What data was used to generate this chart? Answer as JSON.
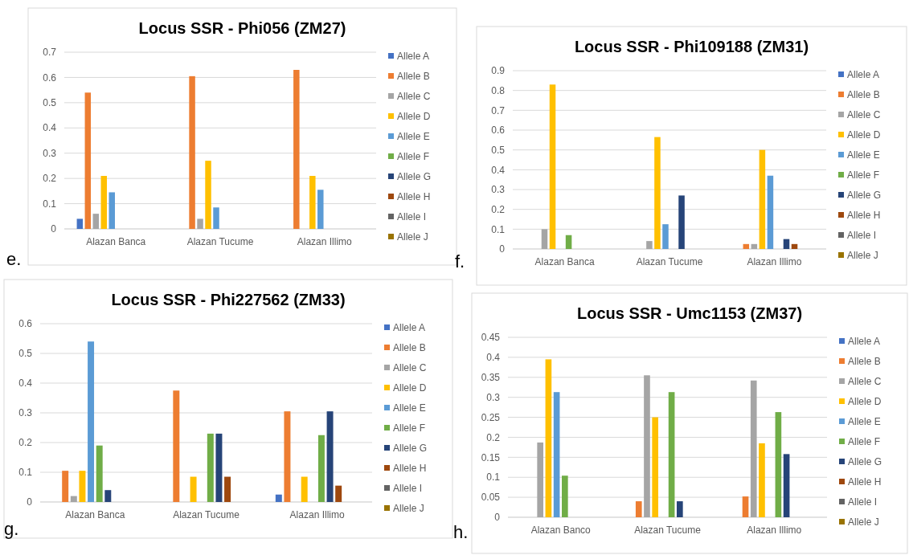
{
  "chart_data": [
    {
      "type": "bar",
      "title": "Locus SSR -  Phi056 (ZM27)",
      "categories": [
        "Alazan Banca",
        "Alazan Tucume",
        "Alazan Illimo"
      ],
      "ylim": [
        0,
        0.7
      ],
      "yticks": [
        0,
        0.1,
        0.2,
        0.3,
        0.4,
        0.5,
        0.6,
        0.7
      ],
      "grid": "y",
      "legend": "right",
      "annotations": [
        "e."
      ],
      "series": [
        {
          "name": "Allele A",
          "color": "#4472c4",
          "values": [
            0.04,
            0,
            0
          ]
        },
        {
          "name": "Allele B",
          "color": "#ed7d31",
          "values": [
            0.54,
            0.605,
            0.63
          ]
        },
        {
          "name": "Allele C",
          "color": "#a5a5a5",
          "values": [
            0.06,
            0.04,
            0
          ]
        },
        {
          "name": "Allele D",
          "color": "#ffc000",
          "values": [
            0.21,
            0.27,
            0.21
          ]
        },
        {
          "name": "Allele E",
          "color": "#5b9bd5",
          "values": [
            0.145,
            0.085,
            0.155
          ]
        },
        {
          "name": "Allele F",
          "color": "#70ad47",
          "values": [
            0,
            0,
            0
          ]
        },
        {
          "name": "Allele G",
          "color": "#264478",
          "values": [
            0,
            0,
            0
          ]
        },
        {
          "name": "Allele H",
          "color": "#9e480e",
          "values": [
            0,
            0,
            0
          ]
        },
        {
          "name": "Allele I",
          "color": "#636363",
          "values": [
            0,
            0,
            0
          ]
        },
        {
          "name": "Allele J",
          "color": "#997300",
          "values": [
            0,
            0,
            0
          ]
        }
      ]
    },
    {
      "type": "bar",
      "title": "Locus SSR -  Phi109188 (ZM31)",
      "categories": [
        "Alazan Banca",
        "Alazan Tucume",
        "Alazan Illimo"
      ],
      "ylim": [
        0,
        0.9
      ],
      "yticks": [
        0,
        0.1,
        0.2,
        0.3,
        0.4,
        0.5,
        0.6,
        0.7,
        0.8,
        0.9
      ],
      "grid": "y",
      "legend": "right",
      "annotations": [
        "f."
      ],
      "series": [
        {
          "name": "Allele A",
          "color": "#4472c4",
          "values": [
            0,
            0,
            0
          ]
        },
        {
          "name": "Allele B",
          "color": "#ed7d31",
          "values": [
            0,
            0,
            0.025
          ]
        },
        {
          "name": "Allele C",
          "color": "#a5a5a5",
          "values": [
            0.1,
            0.04,
            0.025
          ]
        },
        {
          "name": "Allele D",
          "color": "#ffc000",
          "values": [
            0.83,
            0.565,
            0.5
          ]
        },
        {
          "name": "Allele E",
          "color": "#5b9bd5",
          "values": [
            0,
            0.125,
            0.37
          ]
        },
        {
          "name": "Allele F",
          "color": "#70ad47",
          "values": [
            0.07,
            0,
            0
          ]
        },
        {
          "name": "Allele G",
          "color": "#264478",
          "values": [
            0,
            0.27,
            0.05
          ]
        },
        {
          "name": "Allele H",
          "color": "#9e480e",
          "values": [
            0,
            0,
            0.025
          ]
        },
        {
          "name": "Allele I",
          "color": "#636363",
          "values": [
            0,
            0,
            0
          ]
        },
        {
          "name": "Allele J",
          "color": "#997300",
          "values": [
            0,
            0,
            0
          ]
        }
      ]
    },
    {
      "type": "bar",
      "title": "Locus SSR -  Phi227562 (ZM33)",
      "categories": [
        "Alazan Banca",
        "Alazan Tucume",
        "Alazan Illimo"
      ],
      "ylim": [
        0,
        0.6
      ],
      "yticks": [
        0,
        0.1,
        0.2,
        0.3,
        0.4,
        0.5,
        0.6
      ],
      "grid": "y",
      "legend": "right",
      "annotations": [
        "g."
      ],
      "series": [
        {
          "name": "Allele A",
          "color": "#4472c4",
          "values": [
            0,
            0,
            0.025
          ]
        },
        {
          "name": "Allele B",
          "color": "#ed7d31",
          "values": [
            0.105,
            0.375,
            0.305
          ]
        },
        {
          "name": "Allele C",
          "color": "#a5a5a5",
          "values": [
            0.02,
            0,
            0
          ]
        },
        {
          "name": "Allele D",
          "color": "#ffc000",
          "values": [
            0.105,
            0.085,
            0.085
          ]
        },
        {
          "name": "Allele E",
          "color": "#5b9bd5",
          "values": [
            0.54,
            0,
            0
          ]
        },
        {
          "name": "Allele F",
          "color": "#70ad47",
          "values": [
            0.19,
            0.23,
            0.225
          ]
        },
        {
          "name": "Allele G",
          "color": "#264478",
          "values": [
            0.04,
            0.23,
            0.305
          ]
        },
        {
          "name": "Allele H",
          "color": "#9e480e",
          "values": [
            0,
            0.085,
            0.055
          ]
        },
        {
          "name": "Allele I",
          "color": "#636363",
          "values": [
            0,
            0,
            0
          ]
        },
        {
          "name": "Allele J",
          "color": "#997300",
          "values": [
            0,
            0,
            0
          ]
        }
      ]
    },
    {
      "type": "bar",
      "title": "Locus SSR -  Umc1153 (ZM37)",
      "categories": [
        "Alazan Banco",
        "Alazan Tucume",
        "Alazan Illimo"
      ],
      "ylim": [
        0,
        0.45
      ],
      "yticks": [
        0,
        0.05,
        0.1,
        0.15,
        0.2,
        0.25,
        0.3,
        0.35,
        0.4,
        0.45
      ],
      "grid": "y",
      "legend": "right",
      "annotations": [
        "h."
      ],
      "series": [
        {
          "name": "Allele A",
          "color": "#4472c4",
          "values": [
            0,
            0,
            0
          ]
        },
        {
          "name": "Allele B",
          "color": "#ed7d31",
          "values": [
            0,
            0.04,
            0.052
          ]
        },
        {
          "name": "Allele C",
          "color": "#a5a5a5",
          "values": [
            0.187,
            0.355,
            0.342
          ]
        },
        {
          "name": "Allele D",
          "color": "#ffc000",
          "values": [
            0.395,
            0.25,
            0.185
          ]
        },
        {
          "name": "Allele E",
          "color": "#5b9bd5",
          "values": [
            0.313,
            0,
            0
          ]
        },
        {
          "name": "Allele F",
          "color": "#70ad47",
          "values": [
            0.104,
            0.313,
            0.263
          ]
        },
        {
          "name": "Allele G",
          "color": "#264478",
          "values": [
            0,
            0.04,
            0.158
          ]
        },
        {
          "name": "Allele H",
          "color": "#9e480e",
          "values": [
            0,
            0,
            0
          ]
        },
        {
          "name": "Allele I",
          "color": "#636363",
          "values": [
            0,
            0,
            0
          ]
        },
        {
          "name": "Allele J",
          "color": "#997300",
          "values": [
            0,
            0,
            0
          ]
        }
      ]
    }
  ]
}
